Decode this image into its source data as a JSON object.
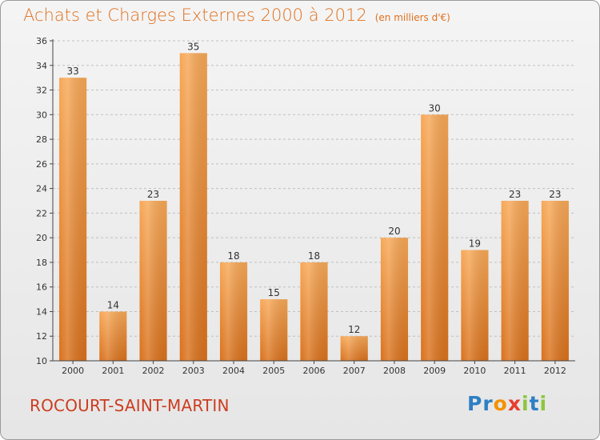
{
  "header": {
    "title": "Achats et Charges Externes 2000 à 2012",
    "subtitle": "(en milliers d'€)"
  },
  "footer": {
    "city": "ROCOURT-SAINT-MARTIN",
    "logo": {
      "text": "Proxiti",
      "letters": [
        {
          "char": "P",
          "color": "#2d7fc4"
        },
        {
          "char": "r",
          "color": "#2d7fc4"
        },
        {
          "char": "o",
          "color": "#f39200"
        },
        {
          "char": "x",
          "color": "#e73d2f"
        },
        {
          "char": "i",
          "color": "#8cc63e"
        },
        {
          "char": "t",
          "color": "#2d7fc4"
        },
        {
          "char": "i",
          "color": "#8cc63e"
        }
      ]
    }
  },
  "colors": {
    "title": "#e0701e",
    "city": "#cc3d20",
    "bar_top": "#f7a857",
    "bar_bottom": "#d9711c",
    "axis": "#444444",
    "grid": "#bfbfbf"
  },
  "chart_data": {
    "type": "bar",
    "categories": [
      "2000",
      "2001",
      "2002",
      "2003",
      "2004",
      "2005",
      "2006",
      "2007",
      "2008",
      "2009",
      "2010",
      "2011",
      "2012"
    ],
    "values": [
      33,
      14,
      23,
      35,
      18,
      15,
      18,
      12,
      20,
      30,
      19,
      23,
      23
    ],
    "data_labels": [
      "33",
      "14",
      "23",
      "35",
      "18",
      "15",
      "18",
      "12",
      "20",
      "30",
      "19",
      "23",
      "23"
    ],
    "ylim": [
      10,
      36
    ],
    "yticks": [
      10,
      12,
      14,
      16,
      18,
      20,
      22,
      24,
      26,
      28,
      30,
      32,
      34,
      36
    ],
    "grid": "horizontal dashed",
    "legend": "none",
    "xlabel": "",
    "ylabel": ""
  }
}
